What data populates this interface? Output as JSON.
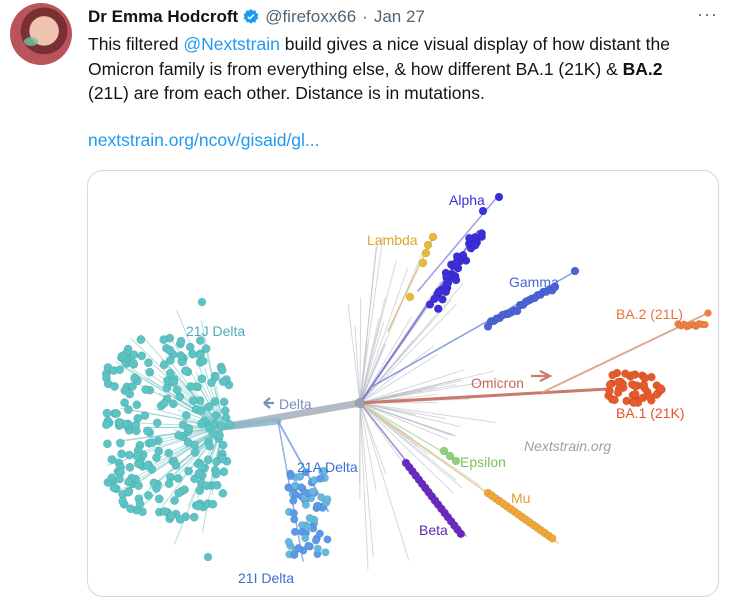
{
  "tweet": {
    "author_name": "Dr Emma Hodcroft",
    "handle": "@firefoxx66",
    "separator": "·",
    "date": "Jan 27",
    "more_label": "···",
    "text_line1_pre": "This filtered ",
    "mention": "@Nextstrain",
    "text_line1_post": " build gives a nice visual display of how distant the",
    "text_line2": "Omicron family is from everything else, & how different BA.1 (21K) & ",
    "text_bold": "BA.2",
    "text_line3": "(21L) are from each other. Distance is in mutations.",
    "link": "nextstrain.org/ncov/gisaid/gl..."
  },
  "figure": {
    "labels": {
      "alpha": "Alpha",
      "lambda": "Lambda",
      "gamma": "Gamma",
      "ba2": "BA.2 (21L)",
      "omicron": "Omicron",
      "ba1": "BA.1 (21K)",
      "delta": "Delta",
      "delta_21j": "21J Delta",
      "delta_21a": "21A Delta",
      "delta_21i": "21I Delta",
      "epsilon": "Epsilon",
      "mu": "Mu",
      "beta": "Beta",
      "watermark": "Nextstrain.org"
    },
    "colors": {
      "alpha": "#3a2fd8",
      "lambda": "#e8b83a",
      "gamma": "#4a63d6",
      "omicron": "#e85a2a",
      "omicron_branch": "#c97a6a",
      "delta": "#5cc4c4",
      "delta_21a": "#4a86e0",
      "epsilon": "#8fd07a",
      "mu": "#f0a83a",
      "beta": "#6a2ac0",
      "stem": "#b0b8c0"
    }
  }
}
